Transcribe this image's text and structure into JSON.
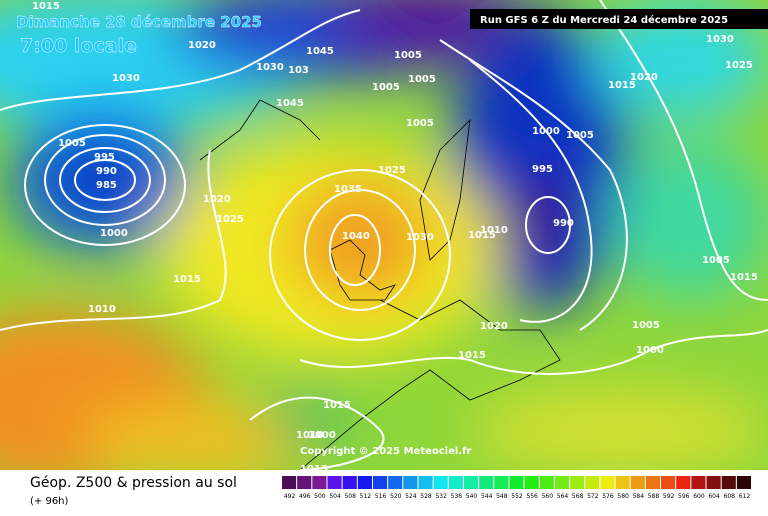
{
  "header": {
    "date": "Dimanche 28 décembre 2025",
    "time": "7:00 locale",
    "run": "Run GFS 6 Z du Mercredi 24 décembre 2025"
  },
  "copyright": "Copyright © 2025 Meteociel.fr",
  "footer": {
    "title": "Géop. Z500 & pression au sol",
    "lead": "(+ 96h)"
  },
  "scale": [
    492,
    496,
    500,
    504,
    508,
    512,
    516,
    520,
    524,
    528,
    532,
    536,
    540,
    544,
    548,
    552,
    556,
    560,
    564,
    568,
    572,
    576,
    580,
    584,
    588,
    592,
    596,
    600,
    604,
    608,
    612
  ],
  "isobar_labels": [
    "1015",
    "1020",
    "1030",
    "1005",
    "995",
    "990",
    "985",
    "1000",
    "1020",
    "1025",
    "1015",
    "1010",
    "1045",
    "1030",
    "103",
    "1045",
    "1005",
    "1005",
    "1005",
    "1005",
    "1025",
    "1035",
    "1040",
    "1030",
    "1015",
    "1010",
    "1000",
    "1005",
    "995",
    "990",
    "1015",
    "1020",
    "1030",
    "1025",
    "1005",
    "1015",
    "1005",
    "1000",
    "1020",
    "1015",
    "1015",
    "1010",
    "1000",
    "1015"
  ]
}
